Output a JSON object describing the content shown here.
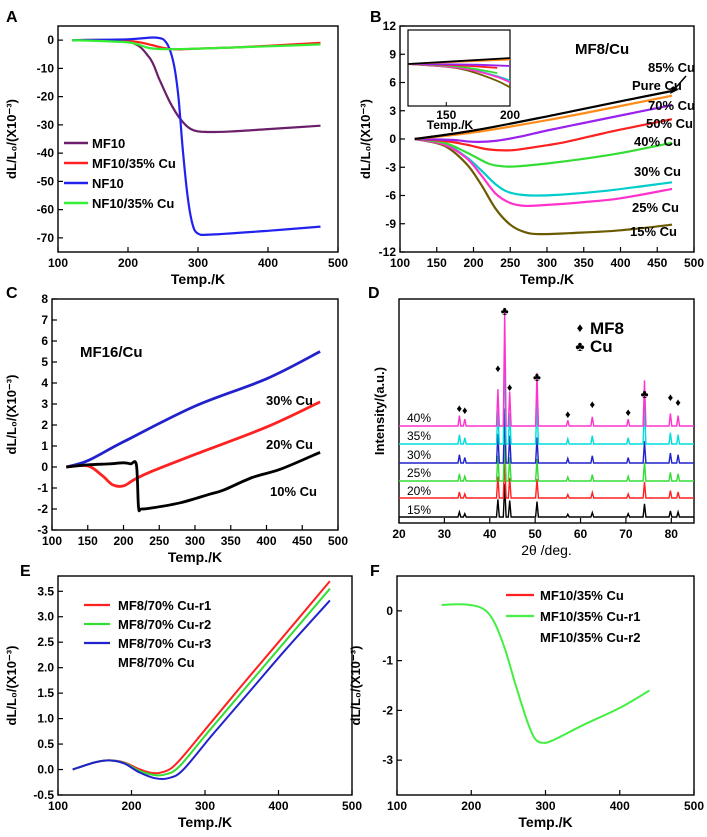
{
  "figure": {
    "panel_labels": [
      "A",
      "B",
      "C",
      "D",
      "E",
      "F"
    ]
  },
  "chart_data": [
    {
      "panel": "A",
      "type": "line",
      "xlabel": "Temp./K",
      "ylabel": "dL/L₀/(X10⁻³)",
      "xlim": [
        100,
        500
      ],
      "ylim": [
        -75,
        5
      ],
      "xticks": [
        "100",
        "200",
        "300",
        "400",
        "500"
      ],
      "yticks": [
        "0",
        "-10",
        "-20",
        "-30",
        "-40",
        "-50",
        "-60",
        "-70"
      ],
      "legend": "bottom-left",
      "series": [
        {
          "name": "MF10",
          "color": "#6b1f6b",
          "x": [
            120,
            200,
            230,
            245,
            260,
            275,
            290,
            310,
            350,
            400,
            475
          ],
          "y": [
            0,
            -0.5,
            -6,
            -14,
            -22,
            -28,
            -31.5,
            -32.5,
            -32.3,
            -31.5,
            -30.3
          ]
        },
        {
          "name": "MF10/35% Cu",
          "color": "#ff2020",
          "x": [
            120,
            200,
            230,
            250,
            270,
            300,
            350,
            400,
            475
          ],
          "y": [
            0,
            -0.3,
            -1.5,
            -2.7,
            -3.3,
            -3,
            -2.6,
            -2,
            -1
          ]
        },
        {
          "name": "NF10",
          "color": "#2222ee",
          "x": [
            120,
            200,
            240,
            255,
            265,
            272,
            278,
            285,
            292,
            300,
            320,
            400,
            475
          ],
          "y": [
            0,
            0.3,
            0.9,
            -1,
            -8,
            -20,
            -38,
            -55,
            -65,
            -68.5,
            -68.8,
            -67.5,
            -66
          ]
        },
        {
          "name": "NF10/35% Cu",
          "color": "#33ee33",
          "x": [
            120,
            200,
            230,
            260,
            300,
            350,
            400,
            475
          ],
          "y": [
            0,
            -0.8,
            -2.8,
            -3.2,
            -3,
            -2.6,
            -2.2,
            -1.5
          ]
        }
      ]
    },
    {
      "panel": "B",
      "type": "line",
      "title": "MF8/Cu",
      "xlabel": "Temp./K",
      "ylabel": "dL/L₀/(X10⁻³)",
      "xlim": [
        100,
        500
      ],
      "ylim": [
        -12,
        12
      ],
      "xticks": [
        "100",
        "150",
        "200",
        "250",
        "300",
        "350",
        "400",
        "450",
        "500"
      ],
      "yticks": [
        "12",
        "9",
        "6",
        "3",
        "0",
        "-3",
        "-6",
        "-9",
        "-12"
      ],
      "inset": {
        "xlabel": "Temp./K",
        "xticks": [
          "150",
          "200"
        ]
      },
      "pointer_label": "Pure Cu",
      "series": [
        {
          "name": "85% Cu",
          "color": "#000000",
          "x": [
            120,
            200,
            300,
            400,
            470
          ],
          "y": [
            0,
            0.9,
            2.4,
            4,
            5.1
          ]
        },
        {
          "name": "70% Cu",
          "color": "#ff8c1a",
          "x": [
            120,
            200,
            300,
            400,
            470
          ],
          "y": [
            0,
            0.7,
            2,
            3.5,
            4.6
          ]
        },
        {
          "name": "50% Cu",
          "color": "#9922ee",
          "x": [
            120,
            170,
            200,
            230,
            260,
            300,
            350,
            400,
            470
          ],
          "y": [
            0,
            -0.1,
            -0.3,
            -0.2,
            0.2,
            0.9,
            1.7,
            2.5,
            3.6
          ]
        },
        {
          "name": "40% Cu",
          "color": "#ff2020",
          "x": [
            120,
            160,
            190,
            220,
            250,
            280,
            320,
            360,
            400,
            470
          ],
          "y": [
            0,
            -0.2,
            -0.6,
            -1.1,
            -1.2,
            -0.9,
            -0.4,
            0.3,
            1,
            2.1
          ]
        },
        {
          "name": "30% Cu",
          "color": "#33dd33",
          "x": [
            120,
            160,
            190,
            220,
            240,
            260,
            300,
            350,
            400,
            470
          ],
          "y": [
            0,
            -0.4,
            -1.4,
            -2.6,
            -2.9,
            -2.9,
            -2.6,
            -2.1,
            -1.5,
            -0.4
          ]
        },
        {
          "name": "25% Cu",
          "color": "#ff33cc",
          "x": [
            120,
            160,
            190,
            210,
            230,
            250,
            270,
            300,
            350,
            400,
            470
          ],
          "y": [
            0,
            -0.6,
            -2,
            -3.8,
            -5.8,
            -6.8,
            -7.1,
            -7,
            -6.7,
            -6.3,
            -5.3
          ]
        },
        {
          "name": "15% Cu",
          "color": "#00cccc",
          "x": [
            120,
            160,
            190,
            210,
            230,
            250,
            280,
            320,
            380,
            470
          ],
          "y": [
            0,
            -0.5,
            -1.9,
            -3.3,
            -4.8,
            -5.7,
            -6,
            -5.9,
            -5.5,
            -4.6
          ]
        },
        {
          "name": "",
          "color": "#6b5b00",
          "x": [
            120,
            160,
            190,
            210,
            230,
            250,
            270,
            290,
            330,
            400,
            470
          ],
          "y": [
            0,
            -0.7,
            -2.6,
            -4.8,
            -7.4,
            -9.1,
            -9.9,
            -10.1,
            -10,
            -9.7,
            -9.1
          ]
        }
      ]
    },
    {
      "panel": "C",
      "type": "line",
      "title": "MF16/Cu",
      "xlabel": "Temp./K",
      "ylabel": "dL/L₀/(X10⁻³)",
      "xlim": [
        100,
        500
      ],
      "ylim": [
        -3,
        8
      ],
      "xticks": [
        "100",
        "150",
        "200",
        "250",
        "300",
        "350",
        "400",
        "450",
        "500"
      ],
      "yticks": [
        "8",
        "7",
        "6",
        "5",
        "4",
        "3",
        "2",
        "1",
        "0",
        "-1",
        "-2",
        "-3"
      ],
      "series": [
        {
          "name": "30% Cu",
          "color": "#2222cc",
          "x": [
            120,
            150,
            200,
            300,
            400,
            475
          ],
          "y": [
            0,
            0.3,
            1.2,
            2.9,
            4.2,
            5.5
          ]
        },
        {
          "name": "20% Cu",
          "color": "#ff2020",
          "x": [
            120,
            150,
            170,
            185,
            200,
            215,
            240,
            300,
            400,
            475
          ],
          "y": [
            0,
            0.05,
            -0.4,
            -0.85,
            -0.9,
            -0.6,
            -0.2,
            0.6,
            1.9,
            3.1
          ]
        },
        {
          "name": "10% Cu",
          "color": "#000000",
          "x": [
            120,
            150,
            180,
            200,
            210,
            218,
            221,
            225,
            240,
            280,
            320,
            340,
            380,
            420,
            475
          ],
          "y": [
            0,
            0.1,
            0.15,
            0.2,
            0.15,
            0.1,
            -1.9,
            -2,
            -1.95,
            -1.7,
            -1.3,
            -1.1,
            -0.5,
            -0.1,
            0.7
          ]
        }
      ]
    },
    {
      "panel": "D",
      "type": "line",
      "xlabel": "2θ /deg.",
      "ylabel": "Intensity/(a.u.)",
      "xlim": [
        20,
        85
      ],
      "xticks": [
        "20",
        "30",
        "40",
        "50",
        "60",
        "70",
        "80"
      ],
      "legend_entries": [
        {
          "symbol": "♦",
          "label": "MF8"
        },
        {
          "symbol": "♣",
          "label": "Cu"
        }
      ],
      "mf8_peaks": [
        33.3,
        34.5,
        41.8,
        44.4,
        57.2,
        62.6,
        70.5,
        79.8,
        81.5
      ],
      "cu_peaks": [
        43.3,
        50.4,
        74.1
      ],
      "series": [
        {
          "name": "15%",
          "color": "#000000"
        },
        {
          "name": "20%",
          "color": "#ff2020"
        },
        {
          "name": "25%",
          "color": "#33dd33"
        },
        {
          "name": "30%",
          "color": "#2222cc"
        },
        {
          "name": "35%",
          "color": "#00dddd"
        },
        {
          "name": "40%",
          "color": "#ff33cc"
        }
      ]
    },
    {
      "panel": "E",
      "type": "line",
      "xlabel": "Temp./K",
      "ylabel": "dL/L₀/(X10⁻³)",
      "xlim": [
        100,
        500
      ],
      "ylim": [
        -0.5,
        3.8
      ],
      "xticks": [
        "100",
        "200",
        "300",
        "400",
        "500"
      ],
      "yticks": [
        "3.5",
        "3.0",
        "2.5",
        "2.0",
        "1.5",
        "1.0",
        "0.5",
        "0.0",
        "-0.5"
      ],
      "legend": "top-left",
      "series": [
        {
          "name": "MF8/70% Cu-r1",
          "color": "#ff2020",
          "x": [
            120,
            150,
            170,
            190,
            210,
            225,
            240,
            260,
            300,
            350,
            400,
            470
          ],
          "y": [
            0,
            0.14,
            0.18,
            0.14,
            0.01,
            -0.06,
            -0.06,
            0.1,
            0.78,
            1.65,
            2.5,
            3.7
          ]
        },
        {
          "name": "MF8/70% Cu-r2",
          "color": "#33dd33",
          "x": [
            120,
            150,
            170,
            190,
            210,
            228,
            245,
            265,
            305,
            355,
            405,
            470
          ],
          "y": [
            0,
            0.14,
            0.18,
            0.13,
            -0.02,
            -0.1,
            -0.1,
            0.06,
            0.75,
            1.6,
            2.45,
            3.55
          ]
        },
        {
          "name": "MF8/70% Cu-r3",
          "color": "#2222cc",
          "x": [
            120,
            150,
            170,
            190,
            210,
            232,
            250,
            270,
            310,
            360,
            410,
            470
          ],
          "y": [
            0,
            0.14,
            0.18,
            0.12,
            -0.05,
            -0.17,
            -0.17,
            -0.01,
            0.68,
            1.52,
            2.36,
            3.32
          ]
        },
        {
          "name": "MF8/70% Cu",
          "color": "#ffffff",
          "x": [],
          "y": []
        }
      ]
    },
    {
      "panel": "F",
      "type": "line",
      "xlabel": "Temp./K",
      "ylabel": "dL/L₀/(X10⁻³)",
      "xlim": [
        100,
        500
      ],
      "ylim": [
        -3.7,
        0.7
      ],
      "xticks": [
        "100",
        "200",
        "300",
        "400",
        "500"
      ],
      "yticks": [
        "0",
        "-1",
        "-2",
        "-3"
      ],
      "legend": "top-right",
      "series": [
        {
          "name": "MF10/35% Cu",
          "color": "#ff2020",
          "x": [],
          "y": []
        },
        {
          "name": "MF10/35% Cu-r1",
          "color": "#44ee44",
          "x": [
            160,
            190,
            215,
            230,
            245,
            260,
            275,
            285,
            295,
            310,
            350,
            400,
            440
          ],
          "y": [
            0.12,
            0.13,
            0.05,
            -0.2,
            -0.75,
            -1.5,
            -2.2,
            -2.55,
            -2.65,
            -2.6,
            -2.3,
            -1.95,
            -1.6
          ]
        },
        {
          "name": "MF10/35% Cu-r2",
          "color": "#ffffff",
          "x": [],
          "y": []
        }
      ]
    }
  ]
}
